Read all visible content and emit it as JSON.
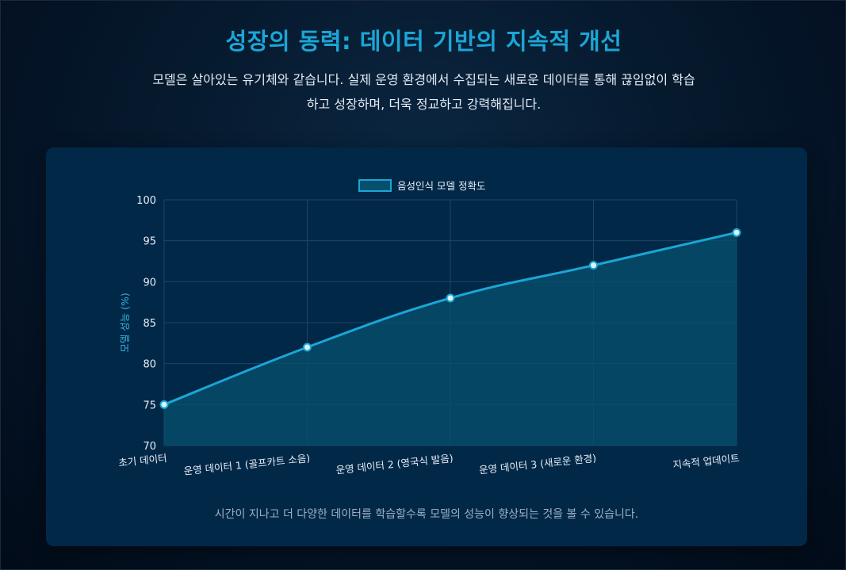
{
  "header": {
    "title": "성장의 동력: 데이터 기반의 지속적 개선",
    "subtitle_line1": "모델은 살아있는 유기체와 같습니다. 실제 운영 환경에서 수집되는 새로운 데이터를 통해 끊임없이 학습",
    "subtitle_line2": "하고 성장하며, 더욱 정교하고 강력해집니다."
  },
  "caption": "시간이 지나고 더 다양한 데이터를 학습할수록 모델의 성능이 향상되는 것을 볼 수 있습니다.",
  "colors": {
    "line": "#1ba6d6",
    "fill": "#06506e",
    "point_fill": "#d9f6ff",
    "grid": "#1c4566",
    "tick_text": "#e6eef6",
    "axis_label": "#35b4df"
  },
  "chart_data": {
    "type": "area",
    "categories": [
      "초기 데이터",
      "운영 데이터 1 (골프카트 소음)",
      "운영 데이터 2 (영국식 발음)",
      "운영 데이터 3 (새로운 환경)",
      "지속적 업데이트"
    ],
    "series": [
      {
        "name": "음성인식 모델 정확도",
        "values": [
          75,
          82,
          88,
          92,
          96
        ]
      }
    ],
    "ylabel": "모델 성능 (%)",
    "xlabel": "",
    "ylim": [
      70,
      100
    ],
    "yticks": [
      70,
      75,
      80,
      85,
      90,
      95,
      100
    ],
    "grid": true,
    "legend": "top-center"
  }
}
